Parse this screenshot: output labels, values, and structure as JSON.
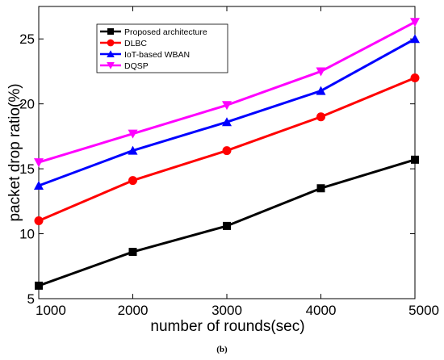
{
  "chart_data": {
    "type": "line",
    "x": [
      1000,
      2000,
      3000,
      4000,
      5000
    ],
    "xlabel": "number of rounds(sec)",
    "ylabel": "packet drop ratio(%)",
    "xlim": [
      1000,
      5000
    ],
    "ylim": [
      5,
      27.5
    ],
    "xticks": [
      "1000",
      "2000",
      "3000",
      "4000",
      "5000"
    ],
    "yticks": [
      "5",
      "10",
      "15",
      "20",
      "25"
    ],
    "ytick_values": [
      5,
      10,
      15,
      20,
      25
    ],
    "legend_position": "top-left",
    "grid": false,
    "series": [
      {
        "name": "Proposed architecture",
        "values": [
          6.0,
          8.6,
          10.6,
          13.5,
          15.7
        ],
        "color": "#000000",
        "marker": "square"
      },
      {
        "name": "DLBC",
        "values": [
          11.0,
          14.1,
          16.4,
          19.0,
          22.0
        ],
        "color": "#ff0000",
        "marker": "circle"
      },
      {
        "name": "IoT-based WBAN",
        "values": [
          13.7,
          16.4,
          18.6,
          21.0,
          25.0
        ],
        "color": "#0000ff",
        "marker": "triangle-up"
      },
      {
        "name": "DQSP",
        "values": [
          15.5,
          17.7,
          19.9,
          22.5,
          26.3
        ],
        "color": "#ff00ff",
        "marker": "triangle-down"
      }
    ]
  },
  "caption": "(b)"
}
